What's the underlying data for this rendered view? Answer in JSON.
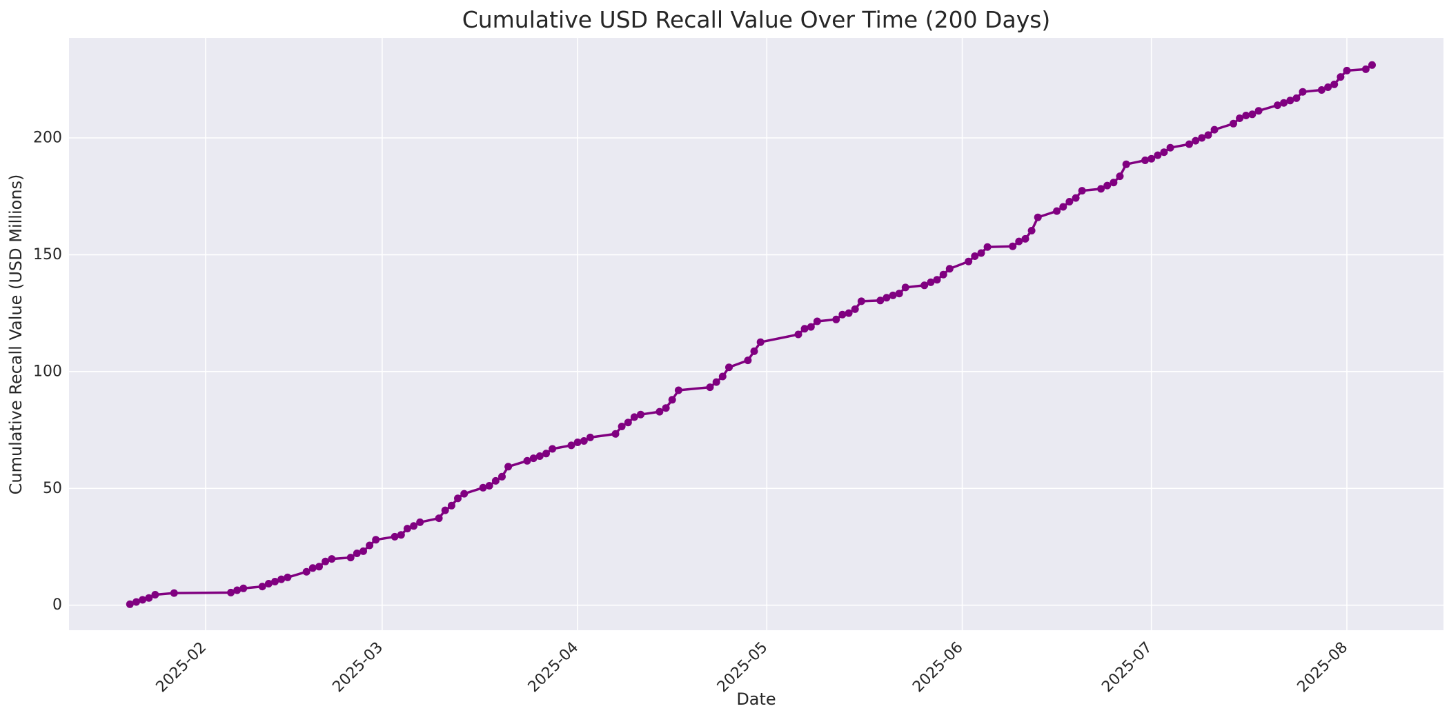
{
  "figure": {
    "title": "Cumulative USD Recall Value Over Time (200 Days)",
    "xlabel": "Date",
    "ylabel": "Cumulative Recall Value (USD Millions)"
  },
  "colors": {
    "line": "#800080",
    "marker": "#800080",
    "plot_background": "#EAEAF2",
    "figure_background": "#FFFFFF",
    "gridline": "#FFFFFF",
    "text": "#262626"
  },
  "chart_data": {
    "type": "line",
    "title": "Cumulative USD Recall Value Over Time (200 Days)",
    "xlabel": "Date",
    "ylabel": "Cumulative Recall Value (USD Millions)",
    "grid": true,
    "legend": false,
    "marker_style": "circle",
    "xlim": [
      "2025-01-10",
      "2025-08-15"
    ],
    "ylim": [
      -10.7,
      242.8
    ],
    "y_ticks": [
      0,
      50,
      100,
      150,
      200
    ],
    "x_ticks": [
      {
        "date": "2025-02-01",
        "label": "2025-02"
      },
      {
        "date": "2025-03-01",
        "label": "2025-03"
      },
      {
        "date": "2025-04-01",
        "label": "2025-04"
      },
      {
        "date": "2025-05-01",
        "label": "2025-05"
      },
      {
        "date": "2025-06-01",
        "label": "2025-06"
      },
      {
        "date": "2025-07-01",
        "label": "2025-07"
      },
      {
        "date": "2025-08-01",
        "label": "2025-08"
      }
    ],
    "series": [
      {
        "name": "cumulative-usd-recall-value",
        "color": "#800080",
        "points": [
          [
            "2025-01-20",
            0.4
          ],
          [
            "2025-01-21",
            1.4
          ],
          [
            "2025-01-22",
            2.3
          ],
          [
            "2025-01-23",
            3.1
          ],
          [
            "2025-01-24",
            4.5
          ],
          [
            "2025-01-27",
            5.2
          ],
          [
            "2025-02-05",
            5.4
          ],
          [
            "2025-02-06",
            6.4
          ],
          [
            "2025-02-07",
            7.2
          ],
          [
            "2025-02-10",
            8.0
          ],
          [
            "2025-02-11",
            9.2
          ],
          [
            "2025-02-12",
            10.1
          ],
          [
            "2025-02-13",
            11.1
          ],
          [
            "2025-02-14",
            11.9
          ],
          [
            "2025-02-17",
            14.3
          ],
          [
            "2025-02-18",
            15.9
          ],
          [
            "2025-02-19",
            16.5
          ],
          [
            "2025-02-20",
            18.7
          ],
          [
            "2025-02-21",
            19.8
          ],
          [
            "2025-02-24",
            20.4
          ],
          [
            "2025-02-25",
            22.2
          ],
          [
            "2025-02-26",
            23.1
          ],
          [
            "2025-02-27",
            25.6
          ],
          [
            "2025-02-28",
            28.0
          ],
          [
            "2025-03-03",
            29.3
          ],
          [
            "2025-03-04",
            30.1
          ],
          [
            "2025-03-05",
            32.8
          ],
          [
            "2025-03-06",
            33.9
          ],
          [
            "2025-03-07",
            35.5
          ],
          [
            "2025-03-10",
            37.2
          ],
          [
            "2025-03-11",
            40.6
          ],
          [
            "2025-03-12",
            42.6
          ],
          [
            "2025-03-13",
            45.7
          ],
          [
            "2025-03-14",
            47.7
          ],
          [
            "2025-03-17",
            50.3
          ],
          [
            "2025-03-18",
            51.1
          ],
          [
            "2025-03-19",
            53.2
          ],
          [
            "2025-03-20",
            55.0
          ],
          [
            "2025-03-21",
            59.3
          ],
          [
            "2025-03-24",
            61.8
          ],
          [
            "2025-03-25",
            62.9
          ],
          [
            "2025-03-26",
            63.8
          ],
          [
            "2025-03-27",
            64.9
          ],
          [
            "2025-03-28",
            66.9
          ],
          [
            "2025-03-31",
            68.4
          ],
          [
            "2025-04-01",
            69.7
          ],
          [
            "2025-04-02",
            70.3
          ],
          [
            "2025-04-03",
            71.8
          ],
          [
            "2025-04-07",
            73.3
          ],
          [
            "2025-04-08",
            76.5
          ],
          [
            "2025-04-09",
            78.2
          ],
          [
            "2025-04-10",
            80.5
          ],
          [
            "2025-04-11",
            81.6
          ],
          [
            "2025-04-14",
            82.8
          ],
          [
            "2025-04-15",
            84.4
          ],
          [
            "2025-04-16",
            87.9
          ],
          [
            "2025-04-17",
            92.0
          ],
          [
            "2025-04-22",
            93.3
          ],
          [
            "2025-04-23",
            95.5
          ],
          [
            "2025-04-24",
            97.9
          ],
          [
            "2025-04-25",
            101.8
          ],
          [
            "2025-04-28",
            104.8
          ],
          [
            "2025-04-29",
            108.7
          ],
          [
            "2025-04-30",
            112.6
          ],
          [
            "2025-05-06",
            115.9
          ],
          [
            "2025-05-07",
            118.3
          ],
          [
            "2025-05-08",
            119.1
          ],
          [
            "2025-05-09",
            121.5
          ],
          [
            "2025-05-12",
            122.3
          ],
          [
            "2025-05-13",
            124.4
          ],
          [
            "2025-05-14",
            125.0
          ],
          [
            "2025-05-15",
            126.7
          ],
          [
            "2025-05-16",
            130.1
          ],
          [
            "2025-05-19",
            130.4
          ],
          [
            "2025-05-20",
            131.6
          ],
          [
            "2025-05-21",
            132.6
          ],
          [
            "2025-05-22",
            133.4
          ],
          [
            "2025-05-23",
            136.0
          ],
          [
            "2025-05-26",
            136.9
          ],
          [
            "2025-05-27",
            138.2
          ],
          [
            "2025-05-28",
            139.3
          ],
          [
            "2025-05-29",
            141.5
          ],
          [
            "2025-05-30",
            144.0
          ],
          [
            "2025-06-02",
            147.1
          ],
          [
            "2025-06-03",
            149.4
          ],
          [
            "2025-06-04",
            150.7
          ],
          [
            "2025-06-05",
            153.3
          ],
          [
            "2025-06-09",
            153.6
          ],
          [
            "2025-06-10",
            155.7
          ],
          [
            "2025-06-11",
            156.8
          ],
          [
            "2025-06-12",
            160.3
          ],
          [
            "2025-06-13",
            166.0
          ],
          [
            "2025-06-16",
            168.7
          ],
          [
            "2025-06-17",
            170.5
          ],
          [
            "2025-06-18",
            172.7
          ],
          [
            "2025-06-19",
            174.3
          ],
          [
            "2025-06-20",
            177.4
          ],
          [
            "2025-06-23",
            178.2
          ],
          [
            "2025-06-24",
            179.6
          ],
          [
            "2025-06-25",
            180.9
          ],
          [
            "2025-06-26",
            183.6
          ],
          [
            "2025-06-27",
            188.7
          ],
          [
            "2025-06-30",
            190.4
          ],
          [
            "2025-07-01",
            191.1
          ],
          [
            "2025-07-02",
            192.6
          ],
          [
            "2025-07-03",
            193.9
          ],
          [
            "2025-07-04",
            195.8
          ],
          [
            "2025-07-07",
            197.3
          ],
          [
            "2025-07-08",
            198.8
          ],
          [
            "2025-07-09",
            200.0
          ],
          [
            "2025-07-10",
            201.2
          ],
          [
            "2025-07-11",
            203.5
          ],
          [
            "2025-07-14",
            206.1
          ],
          [
            "2025-07-15",
            208.4
          ],
          [
            "2025-07-16",
            209.6
          ],
          [
            "2025-07-17",
            210.1
          ],
          [
            "2025-07-18",
            211.6
          ],
          [
            "2025-07-21",
            214.0
          ],
          [
            "2025-07-22",
            215.0
          ],
          [
            "2025-07-23",
            216.0
          ],
          [
            "2025-07-24",
            217.0
          ],
          [
            "2025-07-25",
            219.7
          ],
          [
            "2025-07-28",
            220.5
          ],
          [
            "2025-07-29",
            221.7
          ],
          [
            "2025-07-30",
            222.9
          ],
          [
            "2025-07-31",
            226.1
          ],
          [
            "2025-08-01",
            228.8
          ],
          [
            "2025-08-04",
            229.4
          ],
          [
            "2025-08-05",
            231.2
          ]
        ]
      }
    ]
  }
}
